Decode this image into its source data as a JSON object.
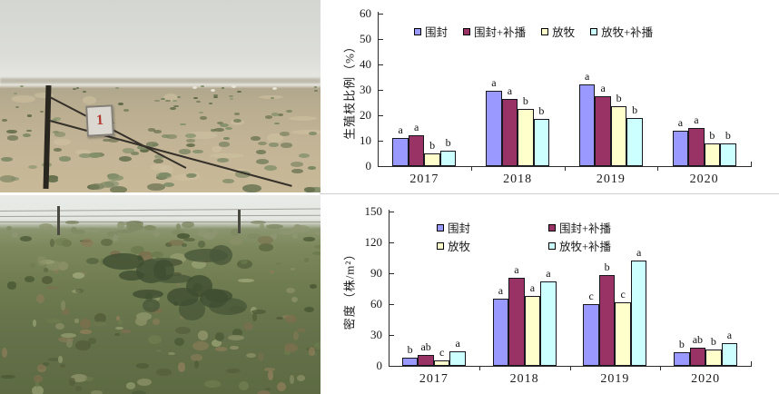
{
  "accent_colors": {
    "series1": "#9999FF",
    "series2": "#993366",
    "series3": "#FFFFCC",
    "series4": "#CCFFFF",
    "sign_red": "#b03a30"
  },
  "photos": {
    "top": {
      "description": "fenced desert steppe plot with marker sign",
      "sign_label": "1"
    },
    "bottom": {
      "description": "restored green grassland with shrubs and fence line"
    }
  },
  "chart_data": [
    {
      "type": "bar",
      "title": "",
      "xlabel": "",
      "ylabel": "生殖枝比例（%）",
      "categories": [
        "2017",
        "2018",
        "2019",
        "2020"
      ],
      "ylim": [
        0,
        60
      ],
      "yticks": [
        0,
        10,
        20,
        30,
        40,
        50,
        60
      ],
      "grid": false,
      "legend_position": "top-row",
      "series": [
        {
          "name": "围封",
          "color": "#9999FF",
          "values": [
            11,
            29.5,
            32,
            14
          ],
          "sig_letters": [
            "a",
            "a",
            "a",
            "a"
          ]
        },
        {
          "name": "围封+补播",
          "color": "#993366",
          "values": [
            12,
            26.5,
            27.5,
            15
          ],
          "sig_letters": [
            "a",
            "a",
            "a",
            "a"
          ]
        },
        {
          "name": "放牧",
          "color": "#FFFFCC",
          "values": [
            5,
            22.5,
            23.5,
            9
          ],
          "sig_letters": [
            "b",
            "b",
            "b",
            "b"
          ]
        },
        {
          "name": "放牧+补播",
          "color": "#CCFFFF",
          "values": [
            6,
            18.5,
            19,
            9
          ],
          "sig_letters": [
            "b",
            "b",
            "b",
            "b"
          ]
        }
      ]
    },
    {
      "type": "bar",
      "title": "",
      "xlabel": "",
      "ylabel": "密度（株/m²）",
      "categories": [
        "2017",
        "2018",
        "2019",
        "2020"
      ],
      "ylim": [
        0,
        150
      ],
      "yticks": [
        0,
        30,
        60,
        90,
        120,
        150
      ],
      "grid": false,
      "legend_position": "top-grid-2x2",
      "series": [
        {
          "name": "围封",
          "color": "#9999FF",
          "values": [
            8,
            65,
            60,
            13
          ],
          "sig_letters": [
            "b",
            "a",
            "c",
            "b"
          ]
        },
        {
          "name": "围封+补播",
          "color": "#993366",
          "values": [
            11,
            86,
            88,
            18
          ],
          "sig_letters": [
            "ab",
            "a",
            "b",
            "ab"
          ]
        },
        {
          "name": "放牧",
          "color": "#FFFFCC",
          "values": [
            5,
            68,
            62,
            16
          ],
          "sig_letters": [
            "c",
            "a",
            "c",
            "b"
          ]
        },
        {
          "name": "放牧+补播",
          "color": "#CCFFFF",
          "values": [
            14,
            82,
            102,
            22
          ],
          "sig_letters": [
            "a",
            "a",
            "a",
            "a"
          ]
        }
      ]
    }
  ]
}
